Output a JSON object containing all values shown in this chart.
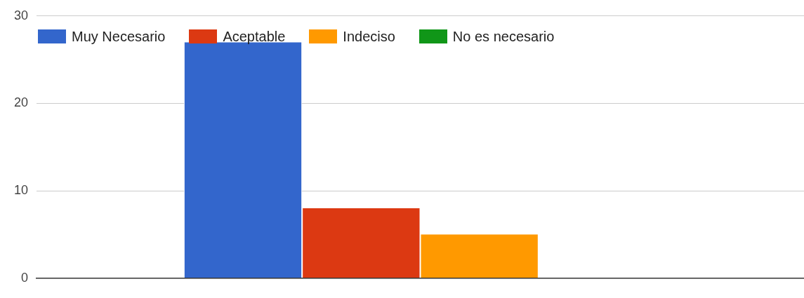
{
  "chart_data": {
    "type": "bar",
    "categories": [
      null
    ],
    "series": [
      {
        "name": "Muy Necesario",
        "color": "#3366cc",
        "values": [
          27
        ]
      },
      {
        "name": "Aceptable",
        "color": "#dc3912",
        "values": [
          8
        ]
      },
      {
        "name": "Indeciso",
        "color": "#ff9900",
        "values": [
          5
        ]
      },
      {
        "name": "No es necesario",
        "color": "#109618",
        "values": [
          0
        ]
      }
    ],
    "ylim": [
      0,
      30
    ],
    "yticks": [
      0,
      10,
      20,
      30
    ],
    "grid": "y",
    "legend": "top left"
  }
}
